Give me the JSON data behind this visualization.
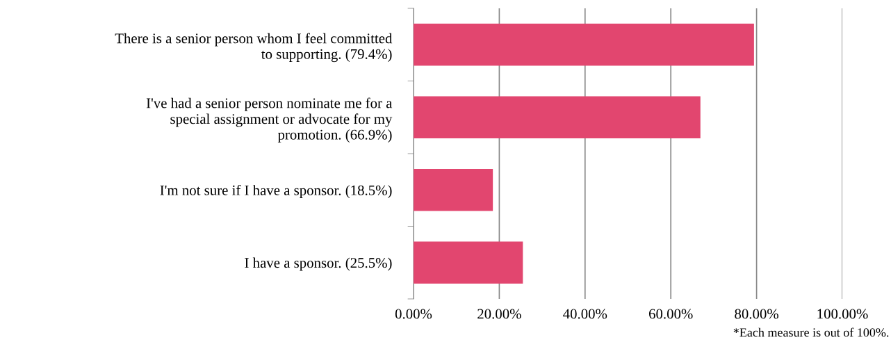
{
  "chart_data": {
    "type": "bar",
    "orientation": "horizontal",
    "categories": [
      "There is a senior person whom I feel committed\nto supporting. (79.4%)",
      "I've had a senior person nominate me for a\nspecial assignment or advocate for my\npromotion. (66.9%)",
      "I'm not sure if I have a sponsor. (18.5%)",
      "I have a sponsor. (25.5%)"
    ],
    "values": [
      79.4,
      66.9,
      18.5,
      25.5
    ],
    "color": "#e2466f",
    "xlim": [
      0,
      100
    ],
    "xticks": [
      {
        "value": 0,
        "label": "0.00%"
      },
      {
        "value": 20,
        "label": "20.00%"
      },
      {
        "value": 40,
        "label": "40.00%"
      },
      {
        "value": 60,
        "label": "60.00%"
      },
      {
        "value": 80,
        "label": "80.00%"
      },
      {
        "value": 100,
        "label": "100.00%"
      }
    ],
    "grid": "x",
    "annotations": [
      "*Each measure is out of 100%."
    ]
  }
}
